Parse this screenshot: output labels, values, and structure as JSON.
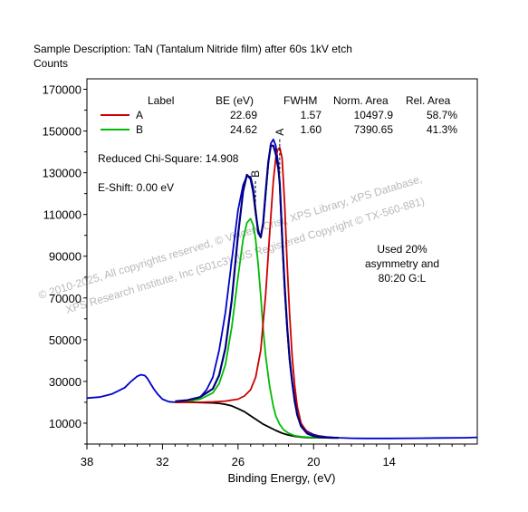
{
  "header": {
    "sample_description": "Sample Description:  TaN (Tantalum Nitride film) after 60s 1kV etch",
    "counts_label": "Counts"
  },
  "annotations": {
    "chi_square": "Reduced Chi-Square: 14.908",
    "e_shift": "E-Shift: 0.00 eV",
    "asymmetry_note": [
      "Used 20%",
      "asymmetry and",
      "80:20 G:L"
    ],
    "watermark": [
      "© 2010-2025,  All copyrights reserved,  © Vincent Crist,  XPS Library, XPS Database,",
      "XPS Research Institute, Inc (501c3)  (US Registered Copyright © TX-560-881)"
    ]
  },
  "colors": {
    "envelope": "#000080",
    "raw_data": "#0000cc",
    "background": "#000000",
    "peak_a": "#cc0000",
    "peak_b": "#00bb00"
  },
  "chart_data": {
    "type": "line",
    "xlabel": "Binding Energy, (eV)",
    "ylabel": "Counts",
    "x_reversed": true,
    "xlim": [
      38,
      7
    ],
    "ylim": [
      0,
      175000
    ],
    "x_ticks": [
      38,
      32,
      26,
      20,
      14
    ],
    "y_ticks": [
      10000,
      30000,
      50000,
      70000,
      90000,
      110000,
      130000,
      150000,
      170000
    ],
    "peak_labels": [
      {
        "label": "A",
        "x": 22.69,
        "y": 146000
      },
      {
        "label": "B",
        "x": 24.62,
        "y": 126000
      }
    ],
    "fit_table": {
      "headers": [
        "Label",
        "BE (eV)",
        "FWHM",
        "Norm. Area",
        "Rel. Area"
      ],
      "rows": [
        {
          "label": "A",
          "be": "22.69",
          "fwhm": "1.57",
          "norm_area": "10497.9",
          "rel_area": "58.7%"
        },
        {
          "label": "B",
          "be": "24.62",
          "fwhm": "1.60",
          "norm_area": "7390.65",
          "rel_area": "41.3%"
        }
      ]
    },
    "series": [
      {
        "key": "raw",
        "x": [
          38,
          37,
          36,
          35,
          34.5,
          34,
          33.7,
          33.4,
          33.2,
          33,
          32.7,
          32.4,
          32,
          31.5,
          31,
          30.5,
          30,
          29.5,
          29,
          28.5,
          28,
          27.5,
          27,
          26.5,
          26,
          25.6,
          25.3,
          25,
          24.8,
          24.6,
          24.4,
          24.2,
          24,
          23.8,
          23.6,
          23.4,
          23.2,
          23,
          22.8,
          22.69,
          22.5,
          22.3,
          22.1,
          21.9,
          21.7,
          21.5,
          21.3,
          21,
          20.5,
          20,
          19.5,
          19,
          18.5,
          18,
          17,
          16,
          14,
          12,
          10,
          8,
          7
        ],
        "y": [
          22000,
          22500,
          24000,
          27000,
          30000,
          32500,
          33200,
          32800,
          31500,
          29500,
          26500,
          24000,
          21500,
          20300,
          20000,
          20100,
          20300,
          21000,
          22500,
          26000,
          32000,
          45000,
          63000,
          88000,
          112000,
          124000,
          128500,
          128000,
          123000,
          112000,
          101000,
          99000,
          106000,
          120000,
          134000,
          144000,
          146000,
          143000,
          134000,
          124000,
          98000,
          74000,
          55000,
          40000,
          29000,
          20000,
          14000,
          9000,
          6000,
          4500,
          3800,
          3400,
          3200,
          3000,
          2800,
          2700,
          2700,
          2800,
          2900,
          3000,
          3200
        ]
      },
      {
        "key": "envelope",
        "x": [
          31,
          30,
          29,
          28,
          27.5,
          27,
          26.5,
          26,
          25.6,
          25.3,
          25,
          24.8,
          24.6,
          24.4,
          24.2,
          24,
          23.8,
          23.6,
          23.4,
          23.2,
          23,
          22.8,
          22.69,
          22.5,
          22.3,
          22.1,
          21.9,
          21.7,
          21.5,
          21.3,
          21,
          20.5,
          20,
          19.5,
          19,
          18.5,
          18
        ],
        "y": [
          20500,
          21000,
          22500,
          26500,
          33000,
          46000,
          69000,
          100000,
          121000,
          129000,
          127000,
          121000,
          111000,
          102000,
          99000,
          106000,
          121000,
          135000,
          143000,
          143000,
          139000,
          132000,
          125000,
          100000,
          76000,
          56000,
          41000,
          30000,
          21000,
          14000,
          8500,
          5000,
          3800,
          3300,
          3100,
          3000,
          3000
        ]
      },
      {
        "key": "background",
        "x": [
          31,
          30,
          29,
          28,
          27.5,
          27,
          26.5,
          26,
          25.5,
          25,
          24.5,
          24,
          23.5,
          23,
          22.5,
          22,
          21.5,
          21,
          20.5,
          20,
          19,
          18
        ],
        "y": [
          20000,
          20000,
          19900,
          19700,
          19500,
          19000,
          18300,
          17000,
          15500,
          13500,
          11500,
          9500,
          8000,
          6500,
          5200,
          4300,
          3700,
          3300,
          3100,
          3000,
          3000,
          3000
        ]
      },
      {
        "key": "peak_a",
        "x": [
          31,
          29,
          28,
          27,
          26,
          25.5,
          25,
          24.6,
          24.2,
          23.8,
          23.5,
          23.2,
          23,
          22.85,
          22.69,
          22.5,
          22.3,
          22.1,
          21.9,
          21.7,
          21.5,
          21.3,
          21,
          20.5,
          20,
          19,
          18
        ],
        "y": [
          20000,
          20000,
          20200,
          20600,
          21500,
          23000,
          26000,
          32000,
          45000,
          72000,
          100000,
          126000,
          137000,
          141000,
          142000,
          137000,
          115000,
          86000,
          62000,
          42000,
          28000,
          18000,
          10000,
          5500,
          4000,
          3200,
          3000
        ]
      },
      {
        "key": "peak_b",
        "x": [
          31,
          30,
          29,
          28,
          27.5,
          27,
          26.5,
          26,
          25.6,
          25.3,
          25,
          24.8,
          24.62,
          24.4,
          24.2,
          24,
          23.8,
          23.5,
          23.2,
          23,
          22.7,
          22.4,
          22,
          21.5,
          21,
          20,
          18
        ],
        "y": [
          20000,
          20500,
          21500,
          24500,
          29000,
          38000,
          56000,
          80000,
          98000,
          106000,
          108000,
          105000,
          99000,
          86000,
          71000,
          55000,
          42000,
          28000,
          18000,
          13500,
          9500,
          7000,
          5200,
          4000,
          3500,
          3100,
          3000
        ]
      }
    ]
  }
}
